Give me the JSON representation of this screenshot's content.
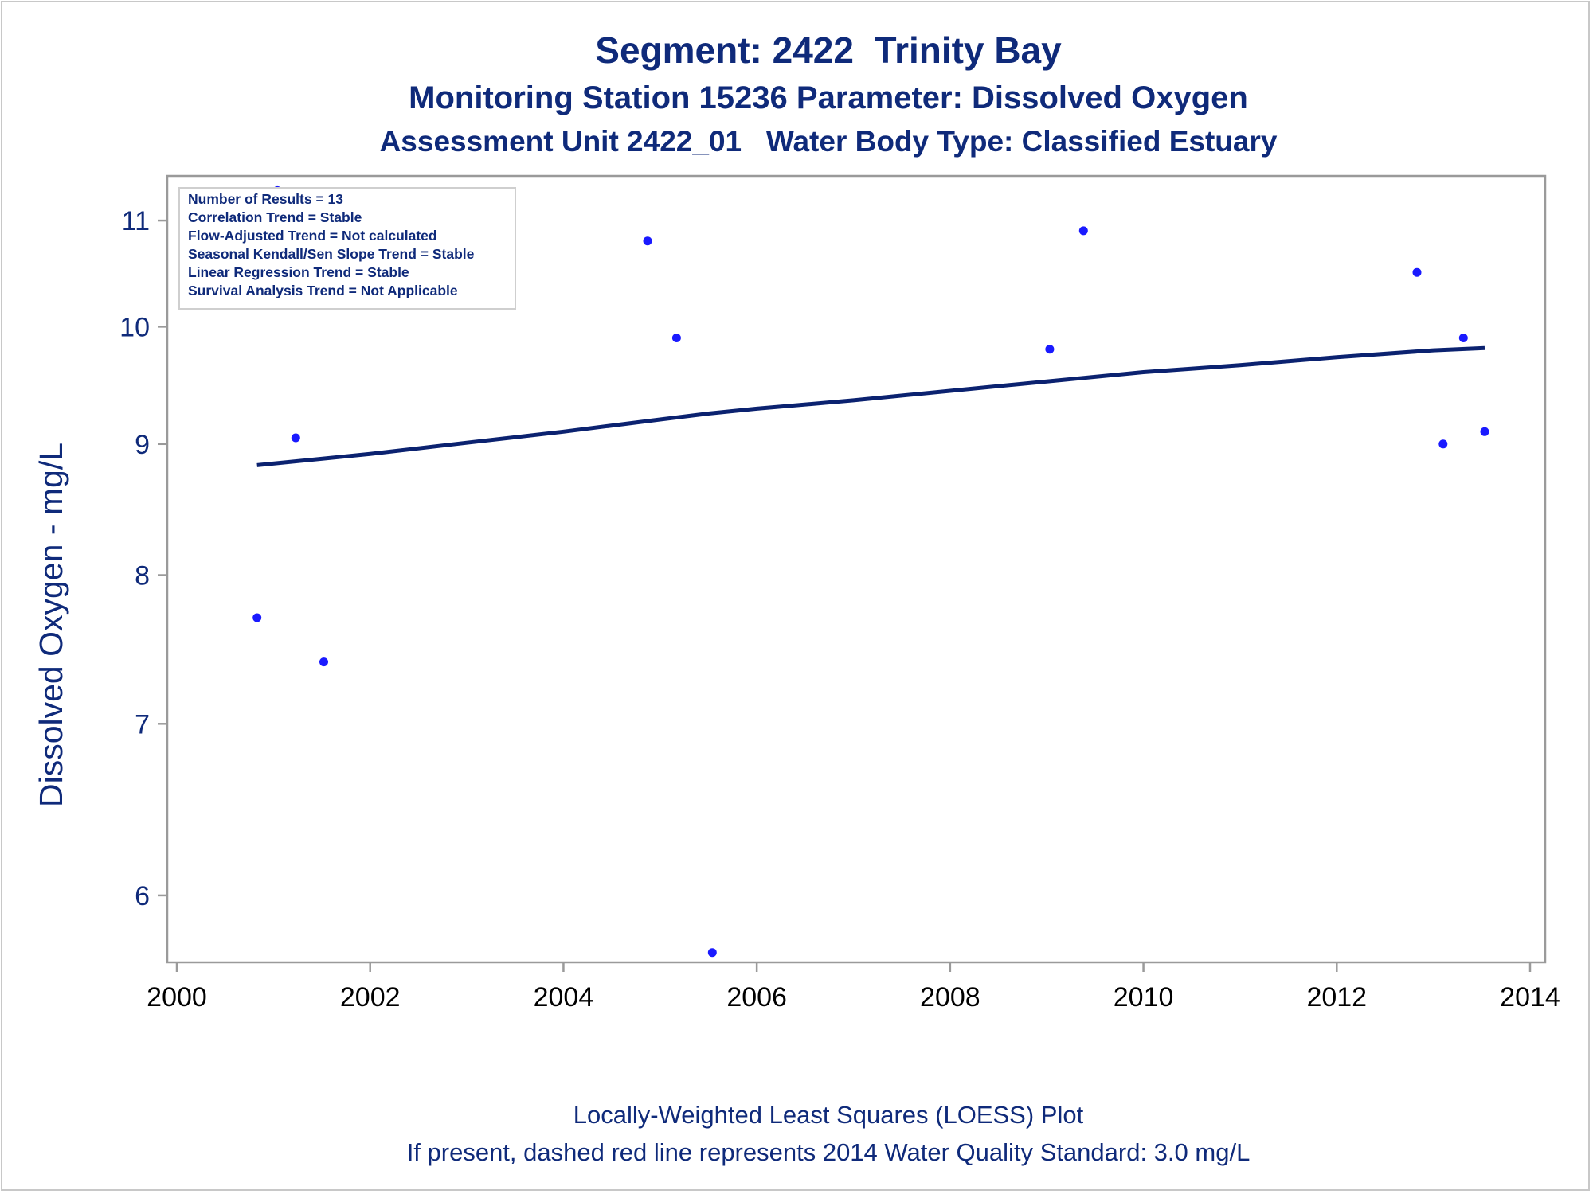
{
  "titles": {
    "line1": "Segment: 2422  Trinity Bay",
    "line2": "Monitoring Station 15236 Parameter: Dissolved Oxygen",
    "line3": "Assessment Unit 2422_01   Water Body Type: Classified Estuary"
  },
  "footnotes": {
    "line1": "Locally-Weighted Least Squares (LOESS) Plot",
    "line2": "If present, dashed red line represents 2014 Water Quality Standard: 3.0 mg/L"
  },
  "stats_box": [
    "Number of Results = 13",
    "Correlation Trend = Stable",
    "Flow-Adjusted Trend = Not calculated",
    "Seasonal Kendall/Sen Slope Trend = Stable",
    "Linear Regression Trend = Stable",
    "Survival Analysis Trend = Not Applicable"
  ],
  "colors": {
    "text": "#0f2a7a",
    "points": "#1a1aff",
    "trend_line": "#0b2270",
    "frame": "#9a9a9a"
  },
  "chart_data": {
    "type": "scatter",
    "ylabel": "Dissolved Oxygen - mg/L",
    "xlabel": "",
    "y_scale": "log",
    "xlim": [
      2000,
      2014
    ],
    "ylim": [
      5.65,
      11.45
    ],
    "x_ticks": [
      2000,
      2002,
      2004,
      2006,
      2008,
      2010,
      2012,
      2014
    ],
    "y_ticks": [
      6,
      7,
      8,
      9,
      10,
      11
    ],
    "legend": "top-left",
    "grid": false,
    "series": [
      {
        "kind": "points",
        "x": [
          2000.83,
          2001.04,
          2001.23,
          2001.52,
          2004.87,
          2005.17,
          2005.54,
          2009.03,
          2009.38,
          2012.83,
          2013.1,
          2013.31,
          2013.53
        ],
        "y": [
          7.7,
          11.3,
          9.05,
          7.4,
          10.8,
          9.9,
          5.7,
          9.8,
          10.9,
          10.5,
          9.0,
          9.9,
          9.1
        ]
      },
      {
        "kind": "line",
        "x": [
          2000.83,
          2002.0,
          2003.0,
          2004.0,
          2005.0,
          2005.5,
          2006.0,
          2007.0,
          2008.0,
          2009.0,
          2010.0,
          2011.0,
          2012.0,
          2013.0,
          2013.53
        ],
        "y": [
          8.83,
          8.92,
          9.01,
          9.1,
          9.2,
          9.25,
          9.29,
          9.36,
          9.44,
          9.52,
          9.6,
          9.66,
          9.73,
          9.79,
          9.81
        ]
      }
    ]
  }
}
